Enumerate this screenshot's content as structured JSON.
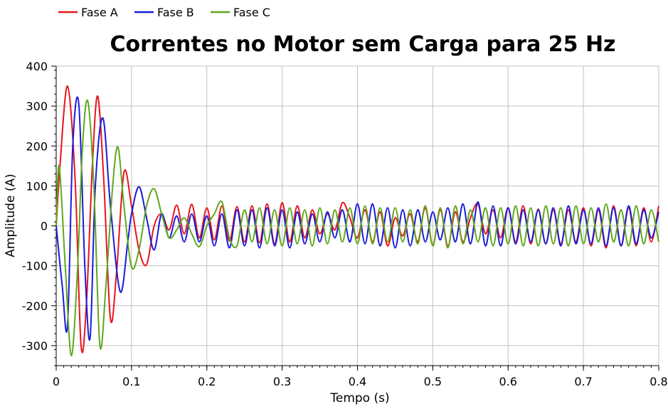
{
  "chart_data": {
    "type": "line",
    "title": "Correntes no Motor sem Carga para 25 Hz",
    "xlabel": "Tempo (s)",
    "ylabel": "Amplitude (A)",
    "xlim": [
      0,
      0.8
    ],
    "ylim": [
      -350,
      400
    ],
    "x_ticks": [
      0,
      0.1,
      0.2,
      0.3,
      0.4,
      0.5,
      0.6,
      0.7,
      0.8
    ],
    "x_tick_labels": [
      "0",
      "0.1",
      "0.2",
      "0.3",
      "0.4",
      "0.5",
      "0.6",
      "0.7",
      "0.8"
    ],
    "y_ticks": [
      400,
      300,
      200,
      100,
      0,
      -100,
      -200,
      -300
    ],
    "y_tick_labels": [
      "400",
      "300",
      "200",
      "100",
      "0",
      "-100",
      "-200",
      "-300"
    ],
    "grid": true,
    "legend_position": "top-left",
    "series": [
      {
        "name": "Fase A",
        "color": "#e8141b",
        "points": [
          [
            0.0,
            0
          ],
          [
            0.005,
            150
          ],
          [
            0.015,
            350
          ],
          [
            0.025,
            120
          ],
          [
            0.033,
            -300
          ],
          [
            0.04,
            -200
          ],
          [
            0.048,
            150
          ],
          [
            0.055,
            325
          ],
          [
            0.063,
            120
          ],
          [
            0.072,
            -232
          ],
          [
            0.08,
            -120
          ],
          [
            0.09,
            134
          ],
          [
            0.1,
            50
          ],
          [
            0.11,
            -60
          ],
          [
            0.12,
            -97
          ],
          [
            0.13,
            0
          ],
          [
            0.14,
            30
          ],
          [
            0.15,
            -10
          ],
          [
            0.16,
            52
          ],
          [
            0.17,
            -20
          ],
          [
            0.18,
            54
          ],
          [
            0.19,
            -30
          ],
          [
            0.2,
            45
          ],
          [
            0.21,
            -35
          ],
          [
            0.22,
            50
          ],
          [
            0.23,
            -38
          ],
          [
            0.24,
            48
          ],
          [
            0.25,
            -40
          ],
          [
            0.26,
            50
          ],
          [
            0.27,
            -42
          ],
          [
            0.28,
            55
          ],
          [
            0.29,
            -45
          ],
          [
            0.3,
            58
          ],
          [
            0.31,
            -40
          ],
          [
            0.32,
            50
          ],
          [
            0.33,
            -30
          ],
          [
            0.34,
            40
          ],
          [
            0.35,
            -20
          ],
          [
            0.36,
            30
          ],
          [
            0.37,
            -10
          ],
          [
            0.38,
            58
          ],
          [
            0.39,
            20
          ],
          [
            0.4,
            -30
          ],
          [
            0.41,
            40
          ],
          [
            0.42,
            -40
          ],
          [
            0.43,
            35
          ],
          [
            0.44,
            -50
          ],
          [
            0.45,
            20
          ],
          [
            0.46,
            -25
          ],
          [
            0.47,
            30
          ],
          [
            0.48,
            -40
          ],
          [
            0.49,
            45
          ],
          [
            0.5,
            -48
          ],
          [
            0.51,
            40
          ],
          [
            0.52,
            -50
          ],
          [
            0.53,
            35
          ],
          [
            0.54,
            -40
          ],
          [
            0.55,
            20
          ],
          [
            0.56,
            55
          ],
          [
            0.57,
            -20
          ],
          [
            0.58,
            40
          ],
          [
            0.59,
            -30
          ],
          [
            0.6,
            45
          ],
          [
            0.61,
            -40
          ],
          [
            0.62,
            50
          ],
          [
            0.63,
            -45
          ],
          [
            0.64,
            42
          ],
          [
            0.65,
            -45
          ],
          [
            0.66,
            40
          ],
          [
            0.67,
            -45
          ],
          [
            0.68,
            40
          ],
          [
            0.69,
            -40
          ],
          [
            0.7,
            45
          ],
          [
            0.71,
            -50
          ],
          [
            0.72,
            40
          ],
          [
            0.73,
            -55
          ],
          [
            0.74,
            50
          ],
          [
            0.75,
            -50
          ],
          [
            0.76,
            45
          ],
          [
            0.77,
            -50
          ],
          [
            0.78,
            45
          ],
          [
            0.79,
            -40
          ],
          [
            0.8,
            50
          ]
        ]
      },
      {
        "name": "Fase B",
        "color": "#1a1adb",
        "points": [
          [
            0.0,
            0
          ],
          [
            0.008,
            -150
          ],
          [
            0.015,
            -250
          ],
          [
            0.022,
            200
          ],
          [
            0.03,
            305
          ],
          [
            0.038,
            -100
          ],
          [
            0.045,
            -280
          ],
          [
            0.052,
            100
          ],
          [
            0.062,
            270
          ],
          [
            0.072,
            50
          ],
          [
            0.085,
            -165
          ],
          [
            0.095,
            -40
          ],
          [
            0.1,
            30
          ],
          [
            0.11,
            98
          ],
          [
            0.12,
            20
          ],
          [
            0.13,
            -60
          ],
          [
            0.14,
            30
          ],
          [
            0.15,
            -30
          ],
          [
            0.16,
            25
          ],
          [
            0.17,
            -40
          ],
          [
            0.18,
            30
          ],
          [
            0.19,
            -40
          ],
          [
            0.2,
            25
          ],
          [
            0.21,
            -50
          ],
          [
            0.22,
            30
          ],
          [
            0.23,
            -55
          ],
          [
            0.24,
            40
          ],
          [
            0.25,
            -50
          ],
          [
            0.26,
            40
          ],
          [
            0.27,
            -55
          ],
          [
            0.28,
            45
          ],
          [
            0.29,
            -50
          ],
          [
            0.3,
            40
          ],
          [
            0.31,
            -55
          ],
          [
            0.32,
            35
          ],
          [
            0.33,
            -45
          ],
          [
            0.34,
            30
          ],
          [
            0.35,
            -40
          ],
          [
            0.36,
            35
          ],
          [
            0.37,
            -30
          ],
          [
            0.38,
            40
          ],
          [
            0.39,
            -40
          ],
          [
            0.4,
            55
          ],
          [
            0.41,
            -45
          ],
          [
            0.42,
            55
          ],
          [
            0.43,
            -50
          ],
          [
            0.44,
            45
          ],
          [
            0.45,
            -55
          ],
          [
            0.46,
            40
          ],
          [
            0.47,
            -50
          ],
          [
            0.48,
            40
          ],
          [
            0.49,
            -40
          ],
          [
            0.5,
            35
          ],
          [
            0.51,
            -35
          ],
          [
            0.52,
            45
          ],
          [
            0.53,
            -40
          ],
          [
            0.54,
            55
          ],
          [
            0.55,
            -45
          ],
          [
            0.56,
            60
          ],
          [
            0.57,
            -50
          ],
          [
            0.58,
            50
          ],
          [
            0.59,
            -50
          ],
          [
            0.6,
            45
          ],
          [
            0.61,
            -45
          ],
          [
            0.62,
            40
          ],
          [
            0.63,
            -40
          ],
          [
            0.64,
            40
          ],
          [
            0.65,
            -45
          ],
          [
            0.66,
            45
          ],
          [
            0.67,
            -50
          ],
          [
            0.68,
            50
          ],
          [
            0.69,
            -45
          ],
          [
            0.7,
            40
          ],
          [
            0.71,
            -45
          ],
          [
            0.72,
            45
          ],
          [
            0.73,
            -50
          ],
          [
            0.74,
            45
          ],
          [
            0.75,
            -50
          ],
          [
            0.76,
            50
          ],
          [
            0.77,
            -45
          ],
          [
            0.78,
            40
          ],
          [
            0.79,
            -30
          ],
          [
            0.8,
            35
          ]
        ]
      },
      {
        "name": "Fase C",
        "color": "#5fa81c",
        "points": [
          [
            0.0,
            0
          ],
          [
            0.004,
            150
          ],
          [
            0.012,
            -100
          ],
          [
            0.02,
            -325
          ],
          [
            0.028,
            -120
          ],
          [
            0.035,
            200
          ],
          [
            0.042,
            312
          ],
          [
            0.05,
            100
          ],
          [
            0.058,
            -300
          ],
          [
            0.066,
            -150
          ],
          [
            0.075,
            100
          ],
          [
            0.082,
            197
          ],
          [
            0.09,
            50
          ],
          [
            0.1,
            -103
          ],
          [
            0.11,
            -60
          ],
          [
            0.12,
            50
          ],
          [
            0.13,
            93
          ],
          [
            0.14,
            30
          ],
          [
            0.15,
            -30
          ],
          [
            0.16,
            -10
          ],
          [
            0.17,
            20
          ],
          [
            0.18,
            -20
          ],
          [
            0.19,
            -52
          ],
          [
            0.2,
            0
          ],
          [
            0.21,
            30
          ],
          [
            0.22,
            60
          ],
          [
            0.23,
            -30
          ],
          [
            0.24,
            -50
          ],
          [
            0.25,
            40
          ],
          [
            0.26,
            -40
          ],
          [
            0.27,
            45
          ],
          [
            0.28,
            -45
          ],
          [
            0.29,
            40
          ],
          [
            0.3,
            -50
          ],
          [
            0.31,
            45
          ],
          [
            0.32,
            -45
          ],
          [
            0.33,
            40
          ],
          [
            0.34,
            -50
          ],
          [
            0.35,
            45
          ],
          [
            0.36,
            -45
          ],
          [
            0.37,
            40
          ],
          [
            0.38,
            -40
          ],
          [
            0.39,
            45
          ],
          [
            0.4,
            -45
          ],
          [
            0.41,
            50
          ],
          [
            0.42,
            -45
          ],
          [
            0.43,
            45
          ],
          [
            0.44,
            -40
          ],
          [
            0.45,
            45
          ],
          [
            0.46,
            -40
          ],
          [
            0.47,
            40
          ],
          [
            0.48,
            -45
          ],
          [
            0.49,
            50
          ],
          [
            0.5,
            -50
          ],
          [
            0.51,
            45
          ],
          [
            0.52,
            -55
          ],
          [
            0.53,
            50
          ],
          [
            0.54,
            -45
          ],
          [
            0.55,
            40
          ],
          [
            0.56,
            -40
          ],
          [
            0.57,
            45
          ],
          [
            0.58,
            -50
          ],
          [
            0.59,
            45
          ],
          [
            0.6,
            -45
          ],
          [
            0.61,
            50
          ],
          [
            0.62,
            -50
          ],
          [
            0.63,
            45
          ],
          [
            0.64,
            -50
          ],
          [
            0.65,
            50
          ],
          [
            0.66,
            -45
          ],
          [
            0.67,
            45
          ],
          [
            0.68,
            -50
          ],
          [
            0.69,
            50
          ],
          [
            0.7,
            -45
          ],
          [
            0.71,
            45
          ],
          [
            0.72,
            -40
          ],
          [
            0.73,
            55
          ],
          [
            0.74,
            -40
          ],
          [
            0.75,
            40
          ],
          [
            0.76,
            -50
          ],
          [
            0.77,
            50
          ],
          [
            0.78,
            -45
          ],
          [
            0.79,
            40
          ],
          [
            0.8,
            -40
          ]
        ]
      }
    ]
  }
}
